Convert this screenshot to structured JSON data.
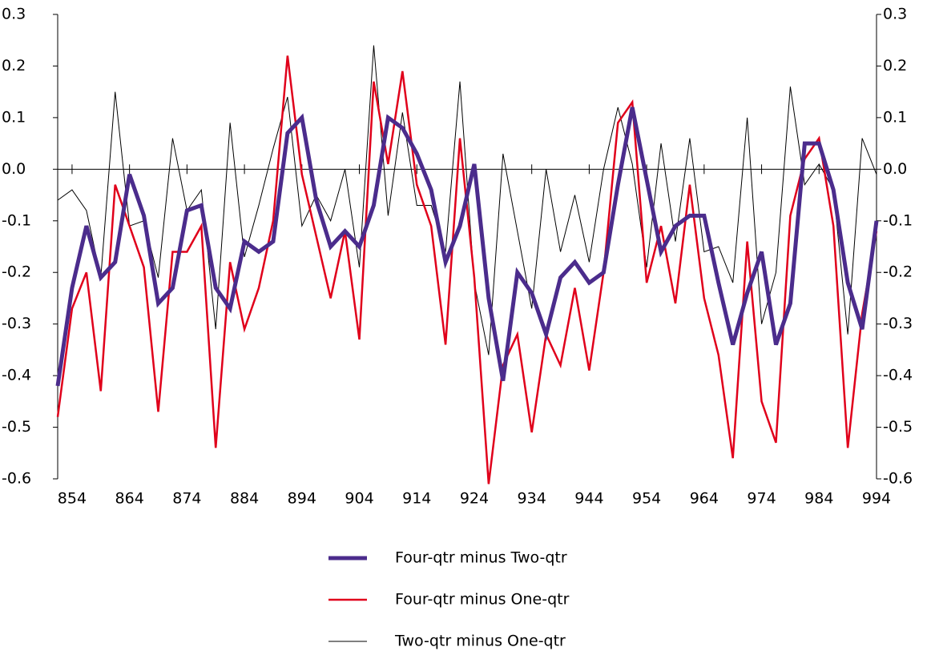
{
  "chart_data": {
    "type": "line",
    "x": [
      851.5,
      854,
      856.5,
      859,
      861.5,
      864,
      866.5,
      869,
      871.5,
      874,
      876.5,
      879,
      881.5,
      884,
      886.5,
      889,
      891.5,
      894,
      896.5,
      899,
      901.5,
      904,
      906.5,
      909,
      911.5,
      914,
      916.5,
      919,
      921.5,
      924,
      926.5,
      929,
      931.5,
      934,
      936.5,
      939,
      941.5,
      944,
      946.5,
      949,
      951.5,
      954,
      956.5,
      959,
      961.5,
      964,
      966.5,
      969,
      971.5,
      974,
      976.5,
      979,
      981.5,
      984,
      986.5,
      989,
      991.5,
      994
    ],
    "series": [
      {
        "name": "Four-qtr minus Two-qtr",
        "color": "#4b2c8c",
        "line_width": 5,
        "values": [
          -0.42,
          -0.23,
          -0.11,
          -0.21,
          -0.18,
          -0.01,
          -0.09,
          -0.26,
          -0.23,
          -0.08,
          -0.07,
          -0.23,
          -0.27,
          -0.14,
          -0.16,
          -0.14,
          0.07,
          0.1,
          -0.06,
          -0.15,
          -0.12,
          -0.15,
          -0.07,
          0.1,
          0.08,
          0.03,
          -0.04,
          -0.18,
          -0.11,
          0.01,
          -0.25,
          -0.41,
          -0.2,
          -0.24,
          -0.32,
          -0.21,
          -0.18,
          -0.22,
          -0.2,
          -0.03,
          0.12,
          -0.02,
          -0.16,
          -0.11,
          -0.09,
          -0.09,
          -0.22,
          -0.34,
          -0.24,
          -0.16,
          -0.34,
          -0.26,
          0.05,
          0.05,
          -0.04,
          -0.22,
          -0.31,
          -0.1
        ]
      },
      {
        "name": "Four-qtr minus One-qtr",
        "color": "#e0001b",
        "line_width": 2.5,
        "values": [
          -0.48,
          -0.27,
          -0.2,
          -0.43,
          -0.03,
          -0.11,
          -0.19,
          -0.47,
          -0.16,
          -0.16,
          -0.11,
          -0.54,
          -0.18,
          -0.31,
          -0.23,
          -0.1,
          0.22,
          -0.01,
          -0.13,
          -0.25,
          -0.12,
          -0.33,
          0.17,
          0.01,
          0.19,
          -0.03,
          -0.11,
          -0.34,
          0.06,
          -0.21,
          -0.61,
          -0.38,
          -0.32,
          -0.51,
          -0.32,
          -0.38,
          -0.23,
          -0.39,
          -0.2,
          0.09,
          0.13,
          -0.22,
          -0.11,
          -0.26,
          -0.03,
          -0.25,
          -0.36,
          -0.56,
          -0.14,
          -0.45,
          -0.53,
          -0.09,
          0.02,
          0.06,
          -0.11,
          -0.54,
          -0.28,
          -0.12
        ]
      },
      {
        "name": "Two-qtr minus One-qtr",
        "color": "#000000",
        "line_width": 1,
        "values": [
          -0.06,
          -0.04,
          -0.08,
          -0.21,
          0.15,
          -0.11,
          -0.1,
          -0.21,
          0.06,
          -0.08,
          -0.04,
          -0.31,
          0.09,
          -0.17,
          -0.07,
          0.04,
          0.14,
          -0.11,
          -0.05,
          -0.1,
          0.0,
          -0.19,
          0.24,
          -0.09,
          0.11,
          -0.07,
          -0.07,
          -0.16,
          0.17,
          -0.22,
          -0.36,
          0.03,
          -0.12,
          -0.27,
          0.0,
          -0.16,
          -0.05,
          -0.18,
          0.0,
          0.12,
          0.01,
          -0.19,
          0.05,
          -0.14,
          0.06,
          -0.16,
          -0.15,
          -0.22,
          0.1,
          -0.3,
          -0.2,
          0.16,
          -0.03,
          0.01,
          -0.04,
          -0.32,
          0.06,
          -0.01
        ]
      }
    ],
    "xlim": [
      851.5,
      994
    ],
    "xticks": [
      854,
      864,
      874,
      884,
      894,
      904,
      914,
      924,
      934,
      944,
      954,
      964,
      974,
      984,
      994
    ],
    "ylim": [
      -0.6,
      0.3
    ],
    "yticks": [
      0.3,
      0.2,
      0.1,
      {
        "value": 0,
        "label": "0.0"
      },
      -0.1,
      -0.2,
      -0.3,
      -0.4,
      -0.5,
      -0.6
    ],
    "right_axis_mirror": true,
    "grid": false
  }
}
